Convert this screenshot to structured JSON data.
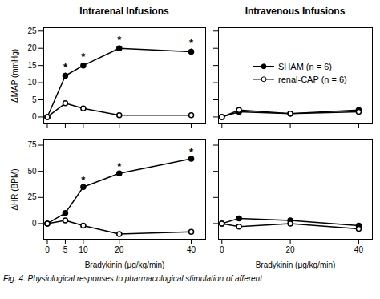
{
  "chart_data": [
    {
      "type": "line",
      "title": "Intrarenal Infusions",
      "ylabel": "ΔMAP (mmHg)",
      "x": [
        0,
        5,
        10,
        20,
        40
      ],
      "series": [
        {
          "name": "SHAM (n = 6)",
          "color": "black",
          "marker": "circle",
          "values": [
            0,
            12,
            15,
            20,
            19
          ],
          "yerr": [
            0,
            0.8,
            0.8,
            0.8,
            0.8
          ]
        },
        {
          "name": "renal-CAP (n = 6)",
          "color": "black",
          "marker": "open_circle",
          "values": [
            0,
            4,
            2.5,
            0.5,
            0.5
          ],
          "yerr": [
            0,
            0.5,
            0.5,
            0.3,
            0.3
          ]
        }
      ],
      "annotations": [
        {
          "x": 5,
          "y": 13.5,
          "text": "*"
        },
        {
          "x": 10,
          "y": 16.5,
          "text": "*"
        },
        {
          "x": 20,
          "y": 21.5,
          "text": "*"
        },
        {
          "x": 40,
          "y": 20.5,
          "text": "*"
        }
      ],
      "xlim": [
        -1,
        44
      ],
      "xticks": [
        0,
        5,
        10,
        20,
        40
      ],
      "ylim": [
        -2,
        26
      ],
      "yticks": [
        0,
        5,
        10,
        15,
        20,
        25
      ],
      "tick_labels": "y"
    },
    {
      "type": "line",
      "title": "Intravenous Infusions",
      "x": [
        0,
        5,
        20,
        40
      ],
      "series": [
        {
          "name": "SHAM (n = 6)",
          "color": "black",
          "marker": "circle",
          "values": [
            0,
            1.5,
            1,
            2
          ],
          "yerr": [
            0.3,
            0.5,
            0.4,
            0.4
          ]
        },
        {
          "name": "renal-CAP (n = 6)",
          "color": "black",
          "marker": "open_circle",
          "values": [
            0,
            2,
            1,
            1.5
          ],
          "yerr": [
            0.3,
            0.5,
            0.4,
            0.4
          ]
        }
      ],
      "xlim": [
        -1,
        44
      ],
      "xticks": [
        0,
        20,
        40
      ],
      "ylim": [
        -2,
        26
      ],
      "yticks": [
        0,
        5,
        10,
        15,
        20,
        25
      ],
      "tick_labels": false,
      "legend": "center"
    },
    {
      "type": "line",
      "ylabel": "ΔHR (BPM)",
      "xlabel": "Bradykinin (μg/kg/min)",
      "x": [
        0,
        5,
        10,
        20,
        40
      ],
      "series": [
        {
          "name": "SHAM (n = 6)",
          "color": "black",
          "marker": "circle",
          "values": [
            0,
            10,
            35,
            48,
            62
          ],
          "yerr": [
            1,
            2,
            2,
            2,
            2
          ]
        },
        {
          "name": "renal-CAP (n = 6)",
          "color": "black",
          "marker": "open_circle",
          "values": [
            0,
            3,
            -2,
            -10,
            -8
          ],
          "yerr": [
            1,
            1.5,
            1.5,
            1.5,
            1.5
          ]
        }
      ],
      "annotations": [
        {
          "x": 10,
          "y": 38,
          "text": "*"
        },
        {
          "x": 20,
          "y": 51,
          "text": "*"
        },
        {
          "x": 40,
          "y": 65,
          "text": "*"
        }
      ],
      "xlim": [
        -1,
        44
      ],
      "xticks": [
        0,
        5,
        10,
        20,
        40
      ],
      "ylim": [
        -15,
        80
      ],
      "yticks": [
        0,
        25,
        50,
        75
      ]
    },
    {
      "type": "line",
      "xlabel": "Bradykinin (μg/kg/min)",
      "x": [
        0,
        5,
        20,
        40
      ],
      "series": [
        {
          "name": "SHAM (n = 6)",
          "color": "black",
          "marker": "circle",
          "values": [
            0,
            5,
            3,
            -2
          ],
          "yerr": [
            1,
            1.5,
            1.5,
            1.5
          ]
        },
        {
          "name": "renal-CAP (n = 6)",
          "color": "black",
          "marker": "open_circle",
          "values": [
            0,
            -3,
            0,
            -5
          ],
          "yerr": [
            1,
            1.5,
            1.5,
            1.5
          ]
        }
      ],
      "xlim": [
        -1,
        44
      ],
      "xticks": [
        0,
        20,
        40
      ],
      "ylim": [
        -15,
        80
      ],
      "yticks": [
        0,
        25,
        50,
        75
      ],
      "tick_labels": "x"
    }
  ],
  "caption": "Fig. 4. Physiological responses to pharmacological stimulation of afferent"
}
